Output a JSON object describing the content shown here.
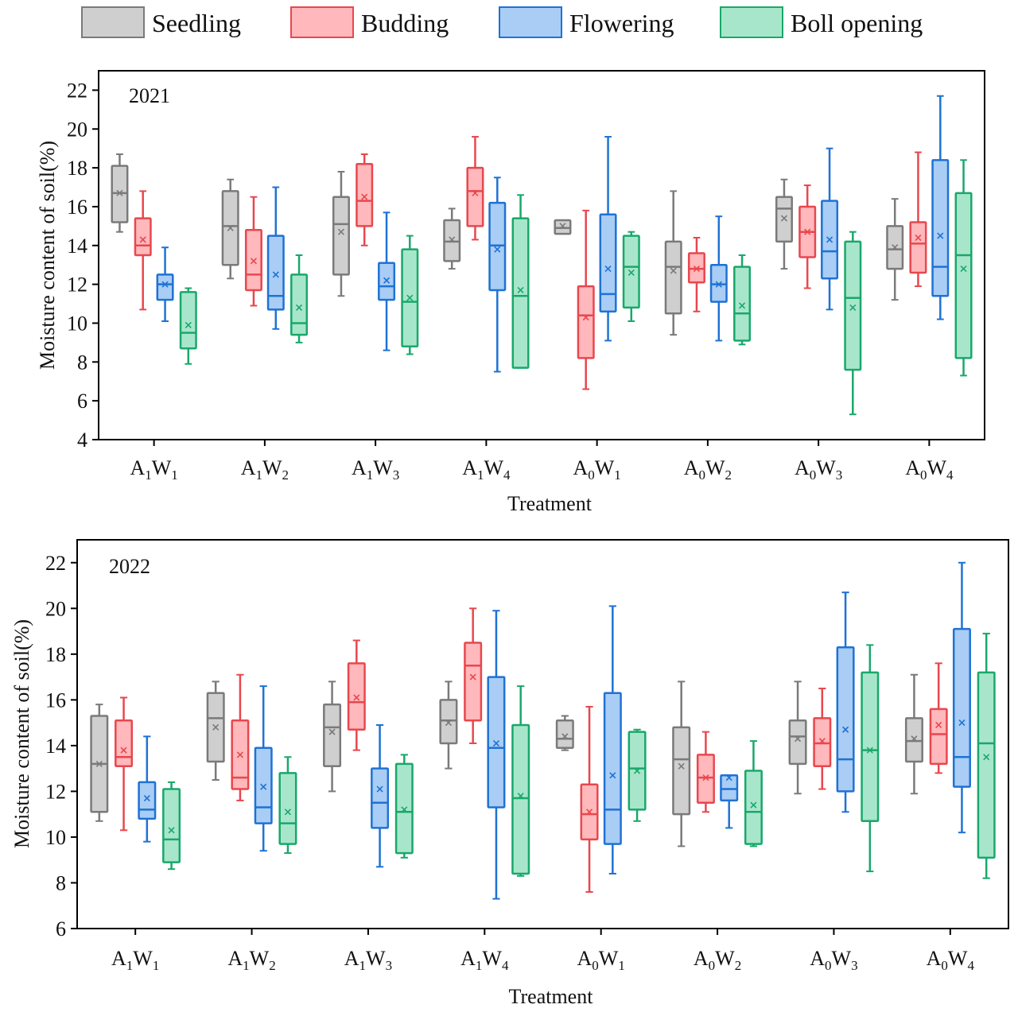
{
  "legend": [
    {
      "label": "Seedling",
      "stroke": "#7a7a7a",
      "fill": "#cfcfcf"
    },
    {
      "label": "Budding",
      "stroke": "#e8474e",
      "fill": "#ffb8bb"
    },
    {
      "label": "Flowering",
      "stroke": "#1f72d4",
      "fill": "#a9cdf5"
    },
    {
      "label": "Boll opening",
      "stroke": "#19a86a",
      "fill": "#a8e6cc"
    }
  ],
  "chart_data": [
    {
      "type": "box",
      "title": "2021",
      "xlabel": "Treatment",
      "ylabel": "Moisture content of soil(%)",
      "ylim": [
        4,
        23
      ],
      "yticks": [
        "4",
        "6",
        "8",
        "10",
        "12",
        "14",
        "16",
        "18",
        "20",
        "22"
      ],
      "categories": [
        {
          "base": "A",
          "sub1": "1",
          "mid": "W",
          "sub2": "1"
        },
        {
          "base": "A",
          "sub1": "1",
          "mid": "W",
          "sub2": "2"
        },
        {
          "base": "A",
          "sub1": "1",
          "mid": "W",
          "sub2": "3"
        },
        {
          "base": "A",
          "sub1": "1",
          "mid": "W",
          "sub2": "4"
        },
        {
          "base": "A",
          "sub1": "0",
          "mid": "W",
          "sub2": "1"
        },
        {
          "base": "A",
          "sub1": "0",
          "mid": "W",
          "sub2": "2"
        },
        {
          "base": "A",
          "sub1": "0",
          "mid": "W",
          "sub2": "3"
        },
        {
          "base": "A",
          "sub1": "0",
          "mid": "W",
          "sub2": "4"
        }
      ],
      "series": [
        {
          "name": "Seedling",
          "boxes": [
            {
              "min": 14.7,
              "q1": 15.2,
              "median": 16.7,
              "q3": 18.1,
              "max": 18.7,
              "mean": 16.7
            },
            {
              "min": 12.3,
              "q1": 13.0,
              "median": 15.0,
              "q3": 16.8,
              "max": 17.4,
              "mean": 14.9
            },
            {
              "min": 11.4,
              "q1": 12.5,
              "median": 15.1,
              "q3": 16.5,
              "max": 17.8,
              "mean": 14.7
            },
            {
              "min": 12.8,
              "q1": 13.2,
              "median": 14.2,
              "q3": 15.3,
              "max": 15.9,
              "mean": 14.3
            },
            {
              "min": 14.6,
              "q1": 14.6,
              "median": 14.9,
              "q3": 15.3,
              "max": 15.3,
              "mean": 15.0
            },
            {
              "min": 9.4,
              "q1": 10.5,
              "median": 12.9,
              "q3": 14.2,
              "max": 16.8,
              "mean": 12.7
            },
            {
              "min": 12.8,
              "q1": 14.2,
              "median": 15.9,
              "q3": 16.5,
              "max": 17.4,
              "mean": 15.4
            },
            {
              "min": 11.2,
              "q1": 12.8,
              "median": 13.8,
              "q3": 15.0,
              "max": 16.4,
              "mean": 13.9
            }
          ]
        },
        {
          "name": "Budding",
          "boxes": [
            {
              "min": 10.7,
              "q1": 13.5,
              "median": 14.0,
              "q3": 15.4,
              "max": 16.8,
              "mean": 14.3
            },
            {
              "min": 10.9,
              "q1": 11.7,
              "median": 12.5,
              "q3": 14.8,
              "max": 16.5,
              "mean": 13.2
            },
            {
              "min": 14.0,
              "q1": 15.0,
              "median": 16.3,
              "q3": 18.2,
              "max": 18.7,
              "mean": 16.5
            },
            {
              "min": 14.3,
              "q1": 15.0,
              "median": 16.8,
              "q3": 18.0,
              "max": 19.6,
              "mean": 16.7
            },
            {
              "min": 6.6,
              "q1": 8.2,
              "median": 10.4,
              "q3": 11.9,
              "max": 15.8,
              "mean": 10.3
            },
            {
              "min": 10.6,
              "q1": 12.1,
              "median": 12.8,
              "q3": 13.6,
              "max": 14.4,
              "mean": 12.8
            },
            {
              "min": 11.8,
              "q1": 13.4,
              "median": 14.7,
              "q3": 16.0,
              "max": 17.1,
              "mean": 14.7
            },
            {
              "min": 11.9,
              "q1": 12.6,
              "median": 14.1,
              "q3": 15.2,
              "max": 18.8,
              "mean": 14.4
            }
          ]
        },
        {
          "name": "Flowering",
          "boxes": [
            {
              "min": 10.1,
              "q1": 11.2,
              "median": 12.0,
              "q3": 12.5,
              "max": 13.9,
              "mean": 12.0
            },
            {
              "min": 9.7,
              "q1": 10.7,
              "median": 11.4,
              "q3": 14.5,
              "max": 17.0,
              "mean": 12.5
            },
            {
              "min": 8.6,
              "q1": 11.2,
              "median": 11.9,
              "q3": 13.1,
              "max": 15.7,
              "mean": 12.2
            },
            {
              "min": 7.5,
              "q1": 11.7,
              "median": 14.0,
              "q3": 16.2,
              "max": 17.5,
              "mean": 13.8
            },
            {
              "min": 9.1,
              "q1": 10.6,
              "median": 11.5,
              "q3": 15.6,
              "max": 19.6,
              "mean": 12.8
            },
            {
              "min": 9.1,
              "q1": 11.1,
              "median": 12.0,
              "q3": 13.0,
              "max": 15.5,
              "mean": 12.0
            },
            {
              "min": 10.7,
              "q1": 12.3,
              "median": 13.7,
              "q3": 16.3,
              "max": 19.0,
              "mean": 14.3
            },
            {
              "min": 10.2,
              "q1": 11.4,
              "median": 12.9,
              "q3": 18.4,
              "max": 21.7,
              "mean": 14.5
            }
          ]
        },
        {
          "name": "Boll opening",
          "boxes": [
            {
              "min": 7.9,
              "q1": 8.7,
              "median": 9.5,
              "q3": 11.6,
              "max": 11.8,
              "mean": 9.9
            },
            {
              "min": 9.0,
              "q1": 9.4,
              "median": 10.0,
              "q3": 12.5,
              "max": 13.5,
              "mean": 10.8
            },
            {
              "min": 8.4,
              "q1": 8.8,
              "median": 11.1,
              "q3": 13.8,
              "max": 14.5,
              "mean": 11.3
            },
            {
              "min": 7.7,
              "q1": 7.7,
              "median": 11.4,
              "q3": 15.4,
              "max": 16.6,
              "mean": 11.7
            },
            {
              "min": 10.1,
              "q1": 10.8,
              "median": 12.9,
              "q3": 14.5,
              "max": 14.7,
              "mean": 12.6
            },
            {
              "min": 8.9,
              "q1": 9.1,
              "median": 10.5,
              "q3": 12.9,
              "max": 13.5,
              "mean": 10.9
            },
            {
              "min": 5.3,
              "q1": 7.6,
              "median": 11.3,
              "q3": 14.2,
              "max": 14.7,
              "mean": 10.8
            },
            {
              "min": 7.3,
              "q1": 8.2,
              "median": 13.5,
              "q3": 16.7,
              "max": 18.4,
              "mean": 12.8
            }
          ]
        }
      ]
    },
    {
      "type": "box",
      "title": "2022",
      "xlabel": "Treatment",
      "ylabel": "Moisture content of soil(%)",
      "ylim": [
        6,
        23
      ],
      "yticks": [
        "6",
        "8",
        "10",
        "12",
        "14",
        "16",
        "18",
        "20",
        "22"
      ],
      "categories": [
        {
          "base": "A",
          "sub1": "1",
          "mid": "W",
          "sub2": "1"
        },
        {
          "base": "A",
          "sub1": "1",
          "mid": "W",
          "sub2": "2"
        },
        {
          "base": "A",
          "sub1": "1",
          "mid": "W",
          "sub2": "3"
        },
        {
          "base": "A",
          "sub1": "1",
          "mid": "W",
          "sub2": "4"
        },
        {
          "base": "A",
          "sub1": "0",
          "mid": "W",
          "sub2": "1"
        },
        {
          "base": "A",
          "sub1": "0",
          "mid": "W",
          "sub2": "2"
        },
        {
          "base": "A",
          "sub1": "0",
          "mid": "W",
          "sub2": "3"
        },
        {
          "base": "A",
          "sub1": "0",
          "mid": "W",
          "sub2": "4"
        }
      ],
      "series": [
        {
          "name": "Seedling",
          "boxes": [
            {
              "min": 10.7,
              "q1": 11.1,
              "median": 13.2,
              "q3": 15.3,
              "max": 15.8,
              "mean": 13.2
            },
            {
              "min": 12.5,
              "q1": 13.3,
              "median": 15.2,
              "q3": 16.3,
              "max": 16.8,
              "mean": 14.8
            },
            {
              "min": 12.0,
              "q1": 13.1,
              "median": 14.8,
              "q3": 15.8,
              "max": 16.8,
              "mean": 14.6
            },
            {
              "min": 13.0,
              "q1": 14.1,
              "median": 15.1,
              "q3": 16.0,
              "max": 16.8,
              "mean": 15.0
            },
            {
              "min": 13.8,
              "q1": 13.9,
              "median": 14.3,
              "q3": 15.1,
              "max": 15.3,
              "mean": 14.4
            },
            {
              "min": 9.6,
              "q1": 11.0,
              "median": 13.4,
              "q3": 14.8,
              "max": 16.8,
              "mean": 13.1
            },
            {
              "min": 11.9,
              "q1": 13.2,
              "median": 14.4,
              "q3": 15.1,
              "max": 16.8,
              "mean": 14.3
            },
            {
              "min": 11.9,
              "q1": 13.3,
              "median": 14.2,
              "q3": 15.2,
              "max": 17.1,
              "mean": 14.3
            }
          ]
        },
        {
          "name": "Budding",
          "boxes": [
            {
              "min": 10.3,
              "q1": 13.1,
              "median": 13.5,
              "q3": 15.1,
              "max": 16.1,
              "mean": 13.8
            },
            {
              "min": 11.6,
              "q1": 12.1,
              "median": 12.6,
              "q3": 15.1,
              "max": 17.1,
              "mean": 13.6
            },
            {
              "min": 13.8,
              "q1": 14.7,
              "median": 15.9,
              "q3": 17.6,
              "max": 18.6,
              "mean": 16.1
            },
            {
              "min": 14.1,
              "q1": 15.1,
              "median": 17.5,
              "q3": 18.5,
              "max": 20.0,
              "mean": 17.0
            },
            {
              "min": 7.6,
              "q1": 9.9,
              "median": 11.0,
              "q3": 12.3,
              "max": 15.7,
              "mean": 11.1
            },
            {
              "min": 11.1,
              "q1": 11.5,
              "median": 12.6,
              "q3": 13.6,
              "max": 14.6,
              "mean": 12.6
            },
            {
              "min": 12.1,
              "q1": 13.1,
              "median": 14.1,
              "q3": 15.2,
              "max": 16.5,
              "mean": 14.2
            },
            {
              "min": 12.8,
              "q1": 13.2,
              "median": 14.5,
              "q3": 15.6,
              "max": 17.6,
              "mean": 14.9
            }
          ]
        },
        {
          "name": "Flowering",
          "boxes": [
            {
              "min": 9.8,
              "q1": 10.8,
              "median": 11.2,
              "q3": 12.4,
              "max": 14.4,
              "mean": 11.7
            },
            {
              "min": 9.4,
              "q1": 10.6,
              "median": 11.3,
              "q3": 13.9,
              "max": 16.6,
              "mean": 12.2
            },
            {
              "min": 8.7,
              "q1": 10.4,
              "median": 11.5,
              "q3": 13.0,
              "max": 14.9,
              "mean": 12.1
            },
            {
              "min": 7.3,
              "q1": 11.3,
              "median": 13.9,
              "q3": 17.0,
              "max": 19.9,
              "mean": 14.1
            },
            {
              "min": 8.4,
              "q1": 9.7,
              "median": 11.2,
              "q3": 16.3,
              "max": 20.1,
              "mean": 12.7
            },
            {
              "min": 10.4,
              "q1": 11.6,
              "median": 12.1,
              "q3": 12.7,
              "max": 12.7,
              "mean": 12.6
            },
            {
              "min": 11.1,
              "q1": 12.0,
              "median": 13.4,
              "q3": 18.3,
              "max": 20.7,
              "mean": 14.7
            },
            {
              "min": 10.2,
              "q1": 12.2,
              "median": 13.5,
              "q3": 19.1,
              "max": 22.0,
              "mean": 15.0
            }
          ]
        },
        {
          "name": "Boll opening",
          "boxes": [
            {
              "min": 8.6,
              "q1": 8.9,
              "median": 9.9,
              "q3": 12.1,
              "max": 12.4,
              "mean": 10.3
            },
            {
              "min": 9.3,
              "q1": 9.7,
              "median": 10.6,
              "q3": 12.8,
              "max": 13.5,
              "mean": 11.1
            },
            {
              "min": 9.1,
              "q1": 9.3,
              "median": 11.1,
              "q3": 13.2,
              "max": 13.6,
              "mean": 11.2
            },
            {
              "min": 8.3,
              "q1": 8.4,
              "median": 11.7,
              "q3": 14.9,
              "max": 16.6,
              "mean": 11.8
            },
            {
              "min": 10.7,
              "q1": 11.2,
              "median": 13.0,
              "q3": 14.6,
              "max": 14.7,
              "mean": 12.9
            },
            {
              "min": 9.6,
              "q1": 9.7,
              "median": 11.1,
              "q3": 12.9,
              "max": 14.2,
              "mean": 11.4
            },
            {
              "min": 8.5,
              "q1": 10.7,
              "median": 13.8,
              "q3": 17.2,
              "max": 18.4,
              "mean": 13.8
            },
            {
              "min": 8.2,
              "q1": 9.1,
              "median": 14.1,
              "q3": 17.2,
              "max": 18.9,
              "mean": 13.5
            }
          ]
        }
      ]
    }
  ]
}
